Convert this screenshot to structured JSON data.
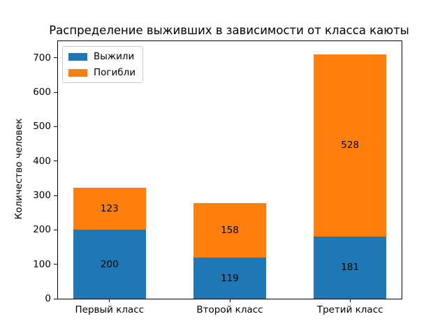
{
  "chart_data": {
    "type": "bar",
    "stacked": true,
    "title": "Распределение выживших в зависимости от класса каюты",
    "ylabel": "Количество человек",
    "xlabel": "",
    "categories": [
      "Первый класс",
      "Второй класс",
      "Третий класс"
    ],
    "series": [
      {
        "name": "Выжили",
        "color": "#1f77b4",
        "values": [
          200,
          119,
          181
        ]
      },
      {
        "name": "Погибли",
        "color": "#ff7f0e",
        "values": [
          123,
          158,
          528
        ]
      }
    ],
    "bar_value_labels_shown": true,
    "yticks": [
      0,
      100,
      200,
      300,
      400,
      500,
      600,
      700
    ],
    "ylim": [
      0,
      748
    ],
    "grid": false,
    "legend_position": "upper-left",
    "text_color": "#000000",
    "spine_color": "#000000",
    "background_color": "#ffffff"
  }
}
